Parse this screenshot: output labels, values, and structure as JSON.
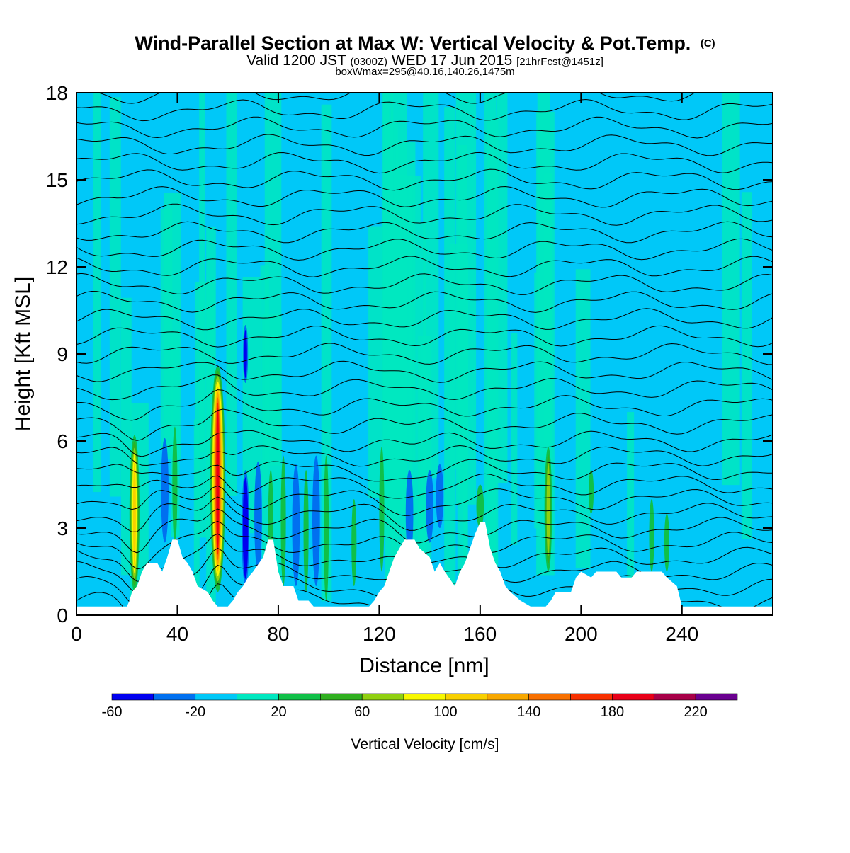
{
  "header": {
    "title_main": "Wind-Parallel Section at Max W: Vertical Velocity & Pot.Temp.",
    "title_mark": "(C)",
    "subtitle_a": "Valid 1200 JST",
    "subtitle_b": "(0300Z)",
    "subtitle_c": "WED 17 Jun 2015",
    "subtitle_d": "[21hrFcst@1451z]",
    "subtitle_line2": "boxWmax=295@40.16,140.26,1475m"
  },
  "chart_data": {
    "type": "heatmap",
    "description_free": true,
    "xlabel": "Distance [nm]",
    "ylabel": "Height [Kft MSL]",
    "xlim": [
      0,
      276
    ],
    "ylim": [
      0,
      18
    ],
    "xticks": [
      0,
      40,
      80,
      120,
      160,
      200,
      240
    ],
    "yticks": [
      0,
      3,
      6,
      9,
      12,
      15,
      18
    ],
    "background_levels": {
      "w_low": 0,
      "w_high": 20
    },
    "terrain_kft": [
      [
        0,
        0.3
      ],
      [
        20,
        0.3
      ],
      [
        21,
        0.5
      ],
      [
        22,
        0.8
      ],
      [
        24,
        1.0
      ],
      [
        26,
        1.5
      ],
      [
        28,
        1.8
      ],
      [
        32,
        1.8
      ],
      [
        34,
        1.5
      ],
      [
        36,
        2.0
      ],
      [
        38,
        2.6
      ],
      [
        40,
        2.6
      ],
      [
        42,
        2.0
      ],
      [
        44,
        1.8
      ],
      [
        46,
        1.5
      ],
      [
        48,
        1.0
      ],
      [
        52,
        0.8
      ],
      [
        54,
        0.5
      ],
      [
        56,
        0.3
      ],
      [
        60,
        0.3
      ],
      [
        62,
        0.5
      ],
      [
        64,
        0.8
      ],
      [
        66,
        1.0
      ],
      [
        68,
        1.3
      ],
      [
        70,
        1.5
      ],
      [
        74,
        2.0
      ],
      [
        76,
        2.6
      ],
      [
        78,
        2.6
      ],
      [
        80,
        1.5
      ],
      [
        82,
        1.0
      ],
      [
        86,
        1.0
      ],
      [
        88,
        0.5
      ],
      [
        92,
        0.5
      ],
      [
        94,
        0.3
      ],
      [
        110,
        0.3
      ],
      [
        116,
        0.3
      ],
      [
        118,
        0.5
      ],
      [
        120,
        0.8
      ],
      [
        122,
        1.0
      ],
      [
        124,
        1.5
      ],
      [
        126,
        2.0
      ],
      [
        128,
        2.3
      ],
      [
        130,
        2.6
      ],
      [
        134,
        2.6
      ],
      [
        136,
        2.3
      ],
      [
        140,
        2.0
      ],
      [
        142,
        1.5
      ],
      [
        144,
        1.8
      ],
      [
        146,
        1.5
      ],
      [
        150,
        1.0
      ],
      [
        152,
        1.5
      ],
      [
        154,
        1.8
      ],
      [
        156,
        2.3
      ],
      [
        158,
        2.8
      ],
      [
        160,
        3.2
      ],
      [
        162,
        3.2
      ],
      [
        164,
        2.3
      ],
      [
        166,
        1.8
      ],
      [
        168,
        1.5
      ],
      [
        170,
        1.0
      ],
      [
        172,
        0.8
      ],
      [
        176,
        0.5
      ],
      [
        180,
        0.3
      ],
      [
        186,
        0.3
      ],
      [
        188,
        0.5
      ],
      [
        190,
        0.8
      ],
      [
        196,
        0.8
      ],
      [
        198,
        1.3
      ],
      [
        200,
        1.5
      ],
      [
        204,
        1.3
      ],
      [
        206,
        1.5
      ],
      [
        214,
        1.5
      ],
      [
        216,
        1.3
      ],
      [
        220,
        1.3
      ],
      [
        222,
        1.5
      ],
      [
        232,
        1.5
      ],
      [
        234,
        1.3
      ],
      [
        238,
        1.0
      ],
      [
        240,
        0.3
      ],
      [
        276,
        0.3
      ]
    ],
    "w_cells": [
      {
        "x": 23,
        "y0": 0.8,
        "y1": 6.2,
        "w": 4,
        "peak": 100
      },
      {
        "x": 56,
        "y0": 0.8,
        "y1": 8.6,
        "w": 6,
        "peak": 180
      },
      {
        "x": 35,
        "y0": 2.5,
        "y1": 6.1,
        "w": 3,
        "peak": -30
      },
      {
        "x": 39,
        "y0": 2.5,
        "y1": 6.5,
        "w": 2,
        "peak": 30
      },
      {
        "x": 67,
        "y0": 8.0,
        "y1": 10.0,
        "w": 2,
        "peak": -40
      },
      {
        "x": 67,
        "y0": 1.0,
        "y1": 5.0,
        "w": 3,
        "peak": -60
      },
      {
        "x": 72,
        "y0": 1.5,
        "y1": 5.3,
        "w": 3,
        "peak": -30
      },
      {
        "x": 77,
        "y0": 1.5,
        "y1": 5.0,
        "w": 2,
        "peak": 30
      },
      {
        "x": 82,
        "y0": 1.0,
        "y1": 5.5,
        "w": 2,
        "peak": 30
      },
      {
        "x": 87,
        "y0": 1.0,
        "y1": 5.2,
        "w": 3,
        "peak": -30
      },
      {
        "x": 91,
        "y0": 0.8,
        "y1": 5.0,
        "w": 2,
        "peak": 30
      },
      {
        "x": 95,
        "y0": 1.0,
        "y1": 5.5,
        "w": 3,
        "peak": -30
      },
      {
        "x": 99,
        "y0": 0.5,
        "y1": 5.5,
        "w": 2,
        "peak": 30
      },
      {
        "x": 110,
        "y0": 1.0,
        "y1": 4.0,
        "w": 2,
        "peak": 30
      },
      {
        "x": 121,
        "y0": 1.5,
        "y1": 5.8,
        "w": 2,
        "peak": 30
      },
      {
        "x": 132,
        "y0": 2.0,
        "y1": 5.0,
        "w": 3,
        "peak": -30
      },
      {
        "x": 140,
        "y0": 2.5,
        "y1": 5.0,
        "w": 3,
        "peak": -30
      },
      {
        "x": 144,
        "y0": 3.0,
        "y1": 5.2,
        "w": 3,
        "peak": -30
      },
      {
        "x": 160,
        "y0": 3.0,
        "y1": 4.5,
        "w": 3,
        "peak": 30
      },
      {
        "x": 187,
        "y0": 1.5,
        "y1": 5.8,
        "w": 3,
        "peak": 60
      },
      {
        "x": 204,
        "y0": 3.5,
        "y1": 5.0,
        "w": 2,
        "peak": 30
      },
      {
        "x": 228,
        "y0": 1.5,
        "y1": 4.0,
        "w": 2,
        "peak": 30
      },
      {
        "x": 234,
        "y0": 1.5,
        "y1": 3.5,
        "w": 2,
        "peak": 30
      }
    ],
    "theta_levels_kft": [
      0.5,
      1.0,
      1.5,
      2.0,
      2.5,
      3.0,
      3.5,
      4.0,
      4.5,
      5.0,
      5.5,
      6.0,
      6.6,
      7.2,
      7.8,
      8.4,
      9.0,
      9.6,
      10.2,
      10.8,
      11.4,
      12.0,
      12.6,
      13.2,
      13.8,
      14.4,
      15.0,
      15.6,
      16.2,
      16.8,
      17.4,
      18.0
    ],
    "colorbar": {
      "levels": [
        -60,
        -40,
        -20,
        0,
        20,
        40,
        60,
        80,
        100,
        120,
        140,
        160,
        180,
        200,
        220,
        240
      ],
      "labels": [
        "-60",
        "-20",
        "20",
        "60",
        "100",
        "140",
        "180",
        "220"
      ],
      "label_values": [
        -60,
        -20,
        20,
        60,
        100,
        140,
        180,
        220
      ],
      "colors": [
        "#0000f0",
        "#0070f0",
        "#00c8f8",
        "#00e8c0",
        "#10c048",
        "#30b020",
        "#90d010",
        "#f8f800",
        "#f8d000",
        "#f8a800",
        "#f87000",
        "#f83000",
        "#e80018",
        "#a80048",
        "#6a0090"
      ],
      "title": "Vertical Velocity [cm/s]"
    }
  }
}
